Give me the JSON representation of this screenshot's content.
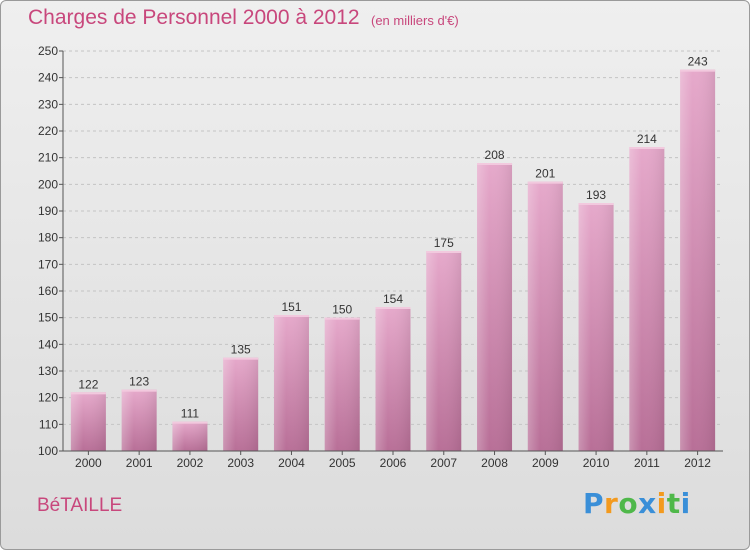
{
  "header": {
    "title": "Charges de Personnel 2000 à 2012",
    "subtitle": "(en milliers d'€)"
  },
  "footer": {
    "place": "BéTAILLE",
    "logo_text": "Proxiti",
    "logo_letters": [
      {
        "ch": "P",
        "color": "#3a8fd8"
      },
      {
        "ch": "r",
        "color": "#f39a1e"
      },
      {
        "ch": "o",
        "color": "#4fb84a"
      },
      {
        "ch": "x",
        "color": "#3a8fd8"
      },
      {
        "ch": "i",
        "color": "#f39a1e"
      },
      {
        "ch": "t",
        "color": "#4fb84a"
      },
      {
        "ch": "i",
        "color": "#3a8fd8"
      }
    ]
  },
  "colors": {
    "bar_light": "#e6a9cb",
    "bar_dark": "#b86f97",
    "bar_top": "#f2c9de",
    "axis_text": "#333333",
    "accent": "#c8477c"
  },
  "chart_data": {
    "type": "bar",
    "title": "Charges de Personnel 2000 à 2012",
    "subtitle": "(en milliers d'€)",
    "categories": [
      "2000",
      "2001",
      "2002",
      "2003",
      "2004",
      "2005",
      "2006",
      "2007",
      "2008",
      "2009",
      "2010",
      "2011",
      "2012"
    ],
    "values": [
      122,
      123,
      111,
      135,
      151,
      150,
      154,
      175,
      208,
      201,
      193,
      214,
      243
    ],
    "ylim": [
      100,
      250
    ],
    "yticks": [
      100,
      110,
      120,
      130,
      140,
      150,
      160,
      170,
      180,
      190,
      200,
      210,
      220,
      230,
      240,
      250
    ],
    "grid": true,
    "data_labels": true
  }
}
